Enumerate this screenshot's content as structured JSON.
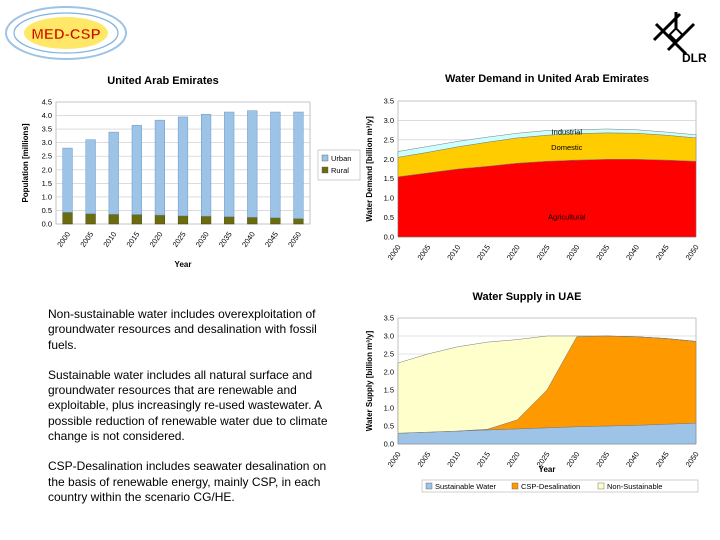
{
  "header": {
    "logo_left_text": "MED-CSP",
    "logo_right_text": "DLR"
  },
  "text": {
    "p1": "Non-sustainable water includes overexploitation of groundwater resources and desalination with fossil fuels.",
    "p2": "Sustainable water includes all natural surface and groundwater resources that are renewable and exploitable, plus increasingly re-used wastewater. A possible reduction of renewable water due to climate change is not considered.",
    "p3": "CSP-Desalination includes seawater desalination on the basis of renewable energy, mainly CSP, in each country within the scenario CG/HE."
  },
  "chart_data": [
    {
      "type": "bar",
      "title": "United Arab Emirates",
      "xlabel": "Year",
      "ylabel": "Population [millions]",
      "ylim": [
        0,
        4.5
      ],
      "yticks": [
        "0.0",
        "0.5",
        "1.0",
        "1.5",
        "2.0",
        "2.5",
        "3.0",
        "3.5",
        "4.0",
        "4.5"
      ],
      "stacked": true,
      "grid": true,
      "legend_position": "right",
      "categories": [
        "2000",
        "2005",
        "2010",
        "2015",
        "2020",
        "2025",
        "2030",
        "2035",
        "2040",
        "2045",
        "2050"
      ],
      "series": [
        {
          "name": "Urban",
          "color": "#9DC3E6",
          "values": [
            2.37,
            2.73,
            3.03,
            3.29,
            3.5,
            3.65,
            3.76,
            3.86,
            3.93,
            3.9,
            3.93
          ]
        },
        {
          "name": "Rural",
          "color": "#6B6B10",
          "values": [
            0.43,
            0.38,
            0.36,
            0.35,
            0.33,
            0.3,
            0.29,
            0.27,
            0.25,
            0.23,
            0.2
          ]
        }
      ]
    },
    {
      "type": "area",
      "title": "Water Demand in United Arab Emirates",
      "xlabel": "",
      "ylabel": "Water Demand [billion m³/y]",
      "ylim": [
        0,
        3.5
      ],
      "yticks": [
        "0.0",
        "0.5",
        "1.0",
        "1.5",
        "2.0",
        "2.5",
        "3.0",
        "3.5"
      ],
      "stacked": true,
      "grid": true,
      "x": [
        "2000",
        "2005",
        "2010",
        "2015",
        "2020",
        "2025",
        "2030",
        "2035",
        "2040",
        "2045",
        "2050"
      ],
      "series": [
        {
          "name": "Agricultural",
          "color": "#FF0000",
          "values": [
            1.55,
            1.65,
            1.75,
            1.82,
            1.9,
            1.95,
            1.98,
            2.0,
            2.0,
            1.98,
            1.95
          ]
        },
        {
          "name": "Domestic",
          "color": "#FFCC00",
          "values": [
            0.5,
            0.53,
            0.57,
            0.62,
            0.65,
            0.67,
            0.68,
            0.68,
            0.67,
            0.64,
            0.6
          ]
        },
        {
          "name": "Industrial",
          "color": "#CCFFFF",
          "values": [
            0.15,
            0.15,
            0.14,
            0.13,
            0.12,
            0.12,
            0.1,
            0.1,
            0.09,
            0.08,
            0.08
          ]
        }
      ]
    },
    {
      "type": "area",
      "title": "Water Supply in UAE",
      "xlabel": "Year",
      "ylabel": "Water Supply [billion m³/y]",
      "ylim": [
        0,
        3.5
      ],
      "yticks": [
        "0.0",
        "0.5",
        "1.0",
        "1.5",
        "2.0",
        "2.5",
        "3.0",
        "3.5"
      ],
      "stacked": true,
      "grid": true,
      "legend_position": "bottom",
      "x": [
        "2000",
        "2005",
        "2010",
        "2015",
        "2020",
        "2025",
        "2030",
        "2035",
        "2040",
        "2045",
        "2050"
      ],
      "series": [
        {
          "name": "Sustainable Water",
          "color": "#9DC3E6",
          "values": [
            0.3,
            0.33,
            0.36,
            0.39,
            0.42,
            0.45,
            0.48,
            0.5,
            0.52,
            0.55,
            0.58
          ]
        },
        {
          "name": "CSP-Desalination",
          "color": "#FF9900",
          "values": [
            0.0,
            0.0,
            0.0,
            0.02,
            0.25,
            1.05,
            2.5,
            2.5,
            2.46,
            2.38,
            2.27
          ]
        },
        {
          "name": "Non-Sustainable",
          "color": "#FFFFCC",
          "values": [
            1.95,
            2.17,
            2.34,
            2.42,
            2.23,
            1.5,
            0.02,
            0.0,
            0.0,
            0.0,
            0.0
          ]
        }
      ]
    }
  ]
}
